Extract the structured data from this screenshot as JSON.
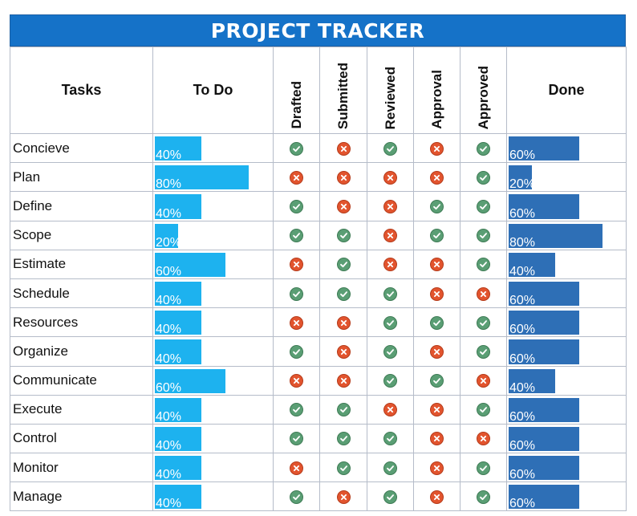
{
  "title": "PROJECT TRACKER",
  "columns": {
    "tasks": "Tasks",
    "todo": "To Do",
    "drafted": "Drafted",
    "submitted": "Submitted",
    "reviewed": "Reviewed",
    "approval": "Approval",
    "approved": "Approved",
    "done": "Done"
  },
  "colors": {
    "header": "#1572c8",
    "todo_bar": "#1db2ef",
    "done_bar": "#2e6fb6",
    "check": "#5a9e74",
    "cross": "#e2542e"
  },
  "icons": {
    "ok": "check-circle-icon",
    "no": "cross-circle-icon"
  },
  "rows": [
    {
      "task": "Concieve",
      "todo": 40,
      "todo_label": "40%",
      "status": [
        "ok",
        "no",
        "ok",
        "no",
        "ok"
      ],
      "done": 60,
      "done_label": "60%"
    },
    {
      "task": "Plan",
      "todo": 80,
      "todo_label": "80%",
      "status": [
        "no",
        "no",
        "no",
        "no",
        "ok"
      ],
      "done": 20,
      "done_label": "20%"
    },
    {
      "task": "Define",
      "todo": 40,
      "todo_label": "40%",
      "status": [
        "ok",
        "no",
        "no",
        "ok",
        "ok"
      ],
      "done": 60,
      "done_label": "60%"
    },
    {
      "task": "Scope",
      "todo": 20,
      "todo_label": "20%",
      "status": [
        "ok",
        "ok",
        "no",
        "ok",
        "ok"
      ],
      "done": 80,
      "done_label": "80%"
    },
    {
      "task": "Estimate",
      "todo": 60,
      "todo_label": "60%",
      "status": [
        "no",
        "ok",
        "no",
        "no",
        "ok"
      ],
      "done": 40,
      "done_label": "40%"
    },
    {
      "task": "Schedule",
      "todo": 40,
      "todo_label": "40%",
      "status": [
        "ok",
        "ok",
        "ok",
        "no",
        "no"
      ],
      "done": 60,
      "done_label": "60%"
    },
    {
      "task": "Resources",
      "todo": 40,
      "todo_label": "40%",
      "status": [
        "no",
        "no",
        "ok",
        "ok",
        "ok"
      ],
      "done": 60,
      "done_label": "60%"
    },
    {
      "task": "Organize",
      "todo": 40,
      "todo_label": "40%",
      "status": [
        "ok",
        "no",
        "ok",
        "no",
        "ok"
      ],
      "done": 60,
      "done_label": "60%"
    },
    {
      "task": "Communicate",
      "todo": 60,
      "todo_label": "60%",
      "status": [
        "no",
        "no",
        "ok",
        "ok",
        "no"
      ],
      "done": 40,
      "done_label": "40%"
    },
    {
      "task": "Execute",
      "todo": 40,
      "todo_label": "40%",
      "status": [
        "ok",
        "ok",
        "no",
        "no",
        "ok"
      ],
      "done": 60,
      "done_label": "60%"
    },
    {
      "task": "Control",
      "todo": 40,
      "todo_label": "40%",
      "status": [
        "ok",
        "ok",
        "ok",
        "no",
        "no"
      ],
      "done": 60,
      "done_label": "60%"
    },
    {
      "task": "Monitor",
      "todo": 40,
      "todo_label": "40%",
      "status": [
        "no",
        "ok",
        "ok",
        "no",
        "ok"
      ],
      "done": 60,
      "done_label": "60%"
    },
    {
      "task": "Manage",
      "todo": 40,
      "todo_label": "40%",
      "status": [
        "ok",
        "no",
        "ok",
        "no",
        "ok"
      ],
      "done": 60,
      "done_label": "60%"
    }
  ]
}
